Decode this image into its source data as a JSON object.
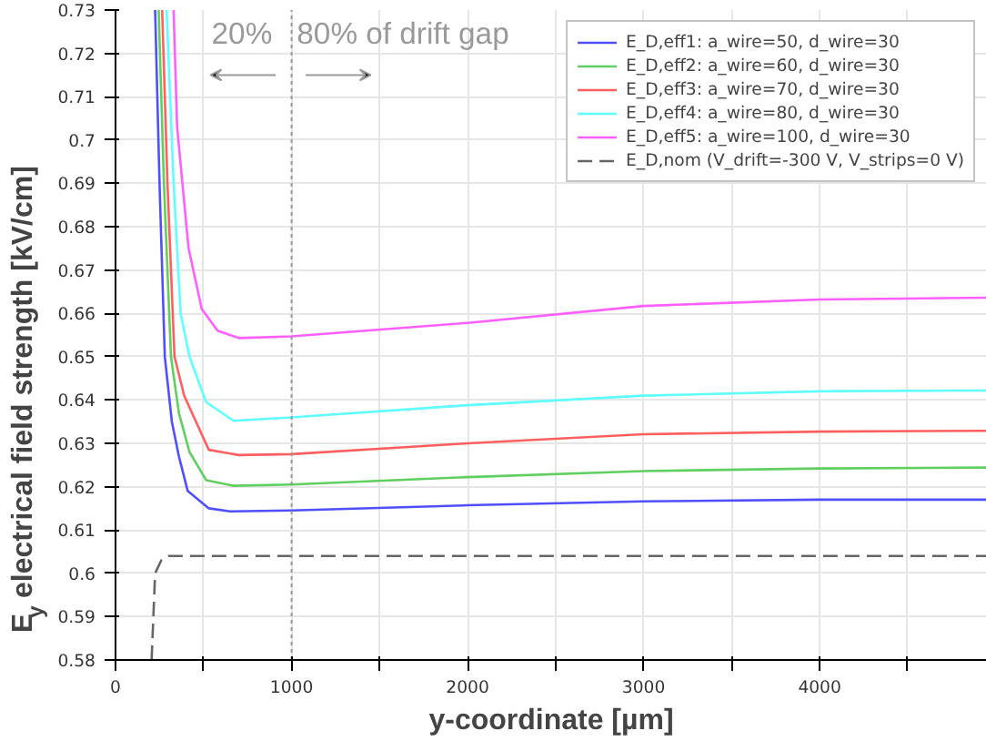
{
  "chart_data": {
    "type": "line",
    "xlabel": "y-coordinate [µm]",
    "ylabel": "E$_{y}$ electrical field strength [kV/cm]",
    "xlim": [
      0,
      4950
    ],
    "ylim": [
      0.58,
      0.73
    ],
    "xticks": [
      0,
      {
        "value": 500,
        "label": null
      },
      1000,
      {
        "value": 1500,
        "label": null
      },
      2000,
      {
        "value": 2500,
        "label": null
      },
      3000,
      {
        "value": 3500,
        "label": null
      },
      4000,
      {
        "value": 4500,
        "label": null
      }
    ],
    "yticks": [
      0.58,
      0.59,
      0.6,
      0.61,
      0.62,
      0.63,
      0.64,
      0.65,
      0.66,
      0.67,
      0.68,
      0.69,
      0.7,
      0.71,
      0.72,
      0.73
    ],
    "grid": true,
    "legend": "top right",
    "line_style": "solid",
    "series": [
      {
        "name": "E_D,eff1: a_wire=50, d_wire=30",
        "color": "#4f4fff",
        "x": [
          225,
          250,
          280,
          320,
          360,
          410,
          530,
          650,
          1000,
          2000,
          3000,
          4000,
          4950
        ],
        "values": [
          0.73,
          0.69,
          0.65,
          0.635,
          0.627,
          0.619,
          0.615,
          0.6143,
          0.6145,
          0.6157,
          0.6166,
          0.617,
          0.617
        ]
      },
      {
        "name": "E_D,eff2: a_wire=60, d_wire=30",
        "color": "#5fcf5f",
        "x": [
          245,
          275,
          315,
          360,
          420,
          515,
          670,
          1000,
          2000,
          3000,
          4000,
          4950
        ],
        "values": [
          0.73,
          0.69,
          0.65,
          0.637,
          0.628,
          0.6215,
          0.6202,
          0.6205,
          0.6222,
          0.6236,
          0.6242,
          0.6244
        ]
      },
      {
        "name": "E_D,eff3: a_wire=70, d_wire=30",
        "color": "#ff5f5f",
        "x": [
          265,
          295,
          335,
          390,
          440,
          530,
          700,
          1000,
          2000,
          3000,
          4000,
          4950
        ],
        "values": [
          0.73,
          0.69,
          0.65,
          0.641,
          0.6365,
          0.6285,
          0.6273,
          0.6275,
          0.63,
          0.6321,
          0.6327,
          0.6329
        ]
      },
      {
        "name": "E_D,eff4: a_wire=80, d_wire=30",
        "color": "#5fffff",
        "x": [
          290,
          330,
          370,
          420,
          515,
          670,
          1000,
          2000,
          3000,
          4000,
          4950
        ],
        "values": [
          0.73,
          0.69,
          0.66,
          0.65,
          0.6395,
          0.6352,
          0.636,
          0.6388,
          0.641,
          0.642,
          0.6422
        ]
      },
      {
        "name": "E_D,eff5: a_wire=100, d_wire=30",
        "color": "#ff5fff",
        "x": [
          330,
          350,
          415,
          490,
          580,
          700,
          1000,
          2000,
          3000,
          4000,
          4950
        ],
        "values": [
          0.73,
          0.703,
          0.675,
          0.661,
          0.656,
          0.6543,
          0.6547,
          0.6578,
          0.6617,
          0.6632,
          0.6636
        ]
      },
      {
        "name": "E_D,nom (V_drift=-300 V, V_strips=0 V)",
        "color": "#666666",
        "line_style": "dashed",
        "x": [
          205,
          225,
          260,
          300,
          1000,
          2000,
          3000,
          4000,
          4950
        ],
        "values": [
          0.58,
          0.6,
          0.603,
          0.604,
          0.604,
          0.604,
          0.604,
          0.604,
          0.604
        ]
      }
    ],
    "ref_lines": [
      {
        "axis": "x",
        "value": 1000,
        "label": null,
        "color": "#999999",
        "line_style": "dotted"
      }
    ],
    "annotations": [
      "20%",
      "80% of drift gap"
    ]
  }
}
